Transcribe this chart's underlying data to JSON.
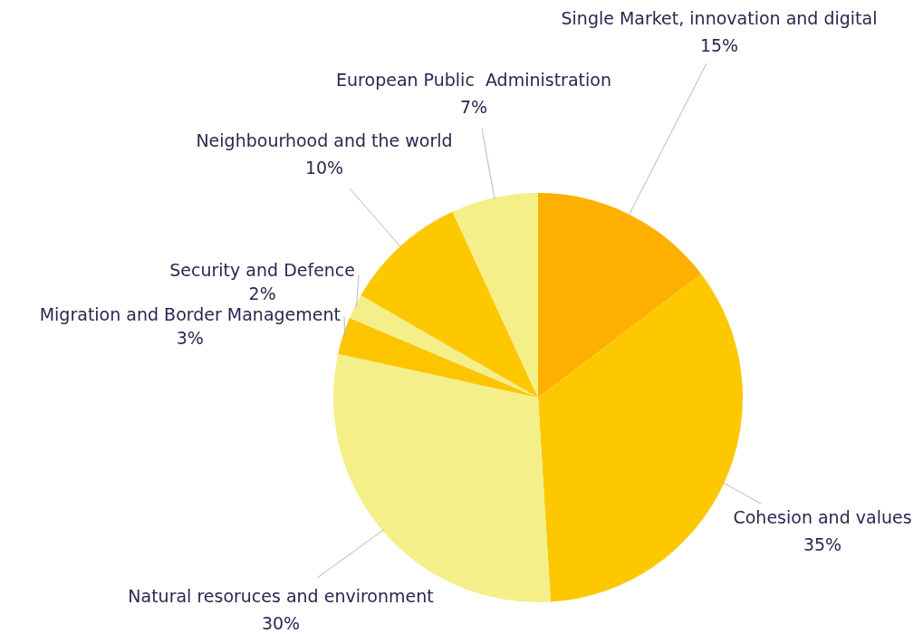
{
  "chart_data": {
    "type": "pie",
    "categories": [
      "Single Market, innovation and digital",
      "Cohesion and values",
      "Natural resoruces and environment",
      "Migration and Border Management",
      "Security and Defence",
      "Neighbourhood and the world",
      "European Public  Administration"
    ],
    "values": [
      15,
      35,
      30,
      3,
      2,
      10,
      7
    ],
    "colors": [
      "#fdb000",
      "#fdc800",
      "#f5ef8a",
      "#fdc400",
      "#f5ef8a",
      "#fdc800",
      "#f5ef8a"
    ],
    "value_labels": [
      "15%",
      "35%",
      "30%",
      "3%",
      "2%",
      "10%",
      "7%"
    ],
    "legend": false
  }
}
